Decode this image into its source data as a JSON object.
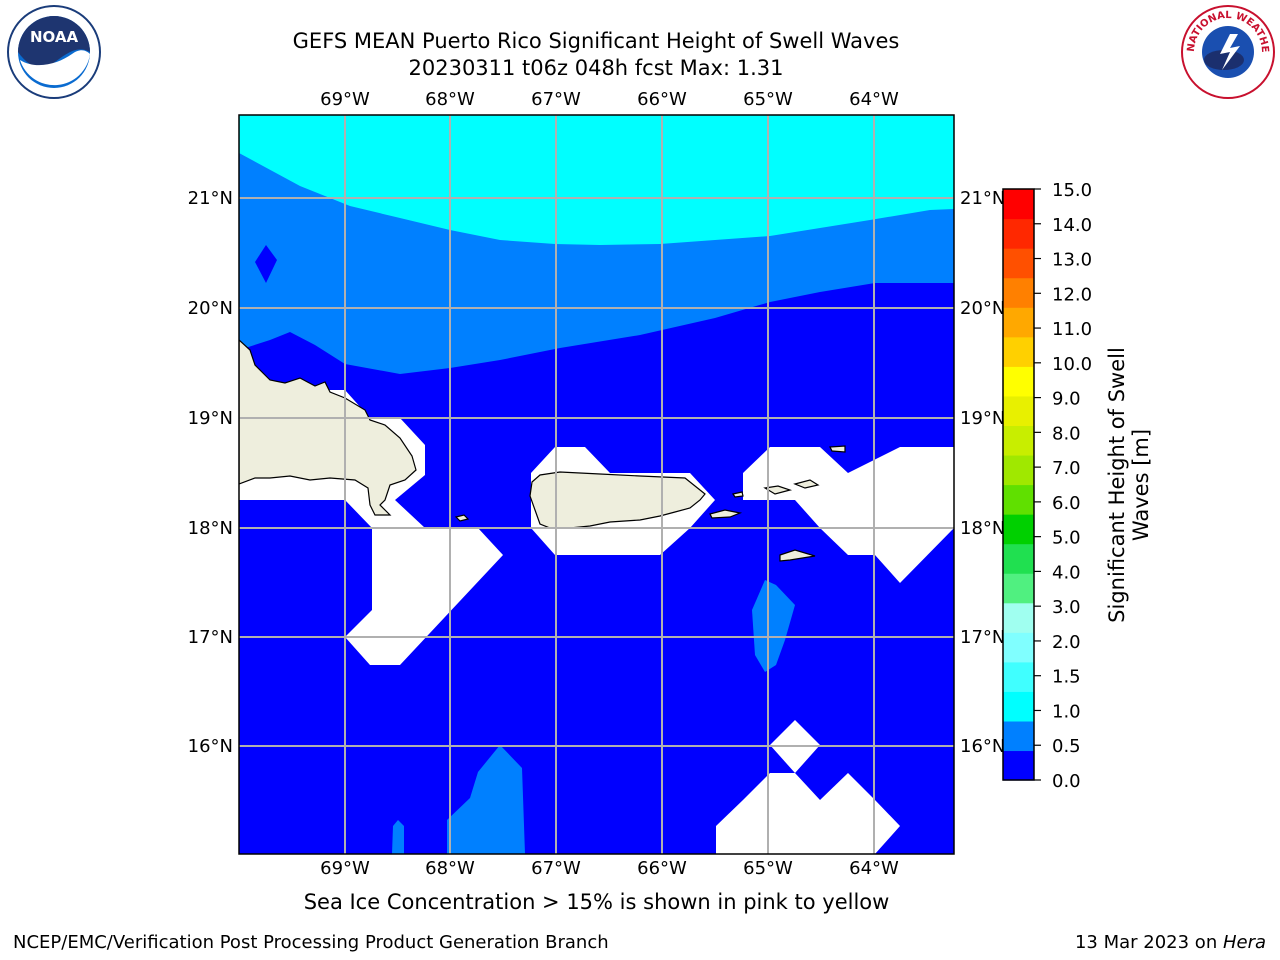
{
  "title": {
    "line1": "GEFS MEAN Puerto Rico Significant Height of Swell Waves",
    "line2": "20230311 t06z 048h fcst   Max: 1.31"
  },
  "logos": {
    "left": "NOAA",
    "right_ring_text": "NATIONAL WEATHER SERVICE"
  },
  "map": {
    "lon_labels": [
      "69°W",
      "68°W",
      "67°W",
      "66°W",
      "65°W",
      "64°W"
    ],
    "lat_labels": [
      "21°N",
      "20°N",
      "19°N",
      "18°N",
      "17°N",
      "16°N"
    ],
    "land_color": "#eeeedd",
    "grid_color": "#b0b0b0"
  },
  "colorbar": {
    "label": "Significant Height of Swell Waves [m]",
    "ticks": [
      "15.0",
      "14.0",
      "13.0",
      "12.0",
      "11.0",
      "10.0",
      "9.0",
      "8.0",
      "7.0",
      "6.0",
      "5.0",
      "4.0",
      "3.0",
      "2.0",
      "1.5",
      "1.0",
      "0.5",
      "0.0"
    ],
    "colors_bottom_to_top": [
      "#0000ff",
      "#0080ff",
      "#00ffff",
      "#40ffff",
      "#80ffff",
      "#a0fff0",
      "#50f080",
      "#20e050",
      "#00d000",
      "#60e000",
      "#a0e800",
      "#c8ee00",
      "#e8f000",
      "#ffff00",
      "#ffd000",
      "#ffa800",
      "#ff8000",
      "#ff5000",
      "#ff2800",
      "#ff0000"
    ]
  },
  "note": "Sea Ice Concentration > 15% is shown in pink to yellow",
  "footer": {
    "left": "NCEP/EMC/Verification Post Processing Product Generation Branch",
    "right_date": "13 Mar 2023 on ",
    "right_host": "Hera"
  }
}
